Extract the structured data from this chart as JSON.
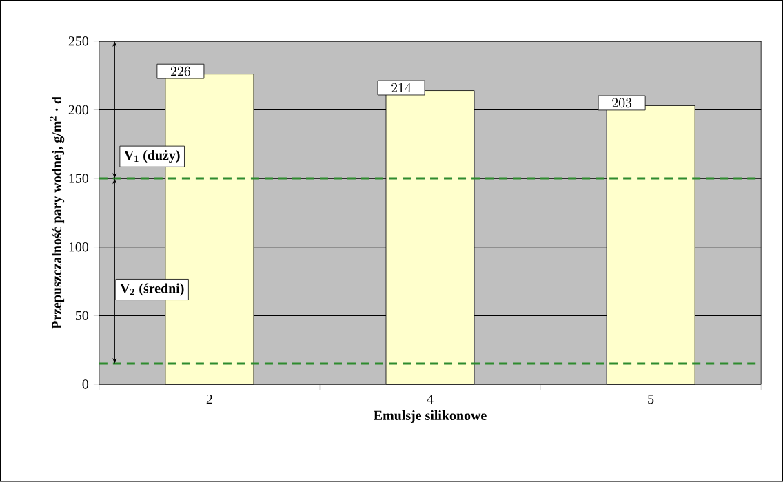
{
  "chart_data": {
    "type": "bar",
    "xlabel": "Emulsje silikonowe",
    "ylabel": "Przepuszczalność pary wodnej, g/m$^{2}$ · d",
    "categories": [
      "2",
      "4",
      "5"
    ],
    "values": [
      226,
      214,
      203
    ],
    "color": "#ffffcc",
    "ylim": [
      0,
      250
    ],
    "yticks": [
      0,
      50,
      100,
      150,
      200,
      250
    ],
    "grid": "y",
    "data_labels": true,
    "ref_lines": [
      {
        "axis": "y",
        "value": 150,
        "color": "#2e8b2e",
        "line_style": "dashed"
      },
      {
        "axis": "y",
        "value": 15,
        "color": "#2e8b2e",
        "line_style": "dashed"
      }
    ],
    "annotations": [
      "V$_{1}$ (duży)",
      "V$_{2}$ (średni)"
    ]
  }
}
